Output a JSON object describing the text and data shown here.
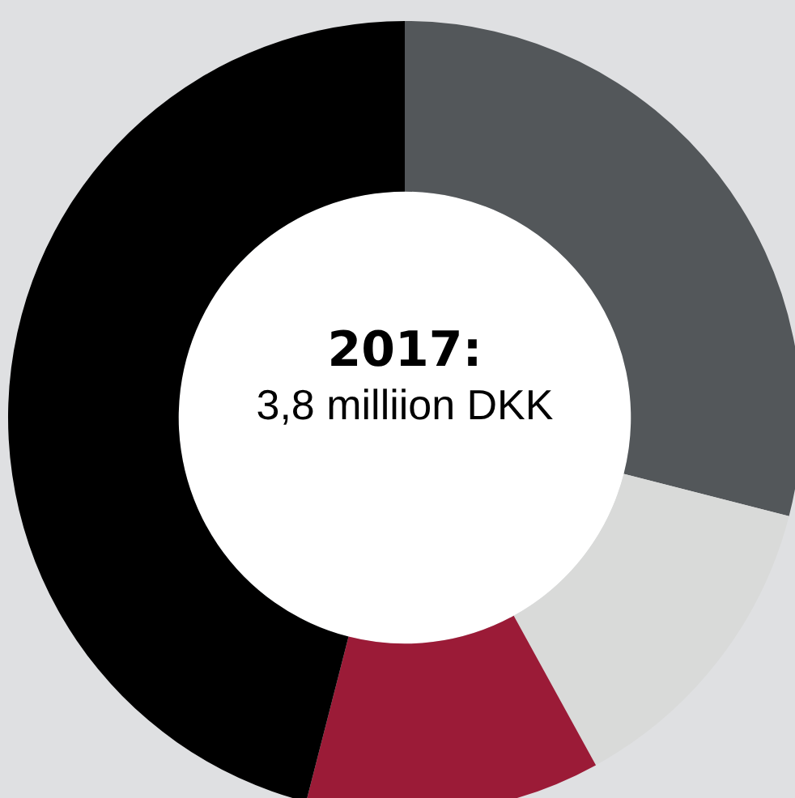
{
  "chart_data": {
    "type": "donut",
    "title": "2017:",
    "subtitle": "3,8 milliion DKK",
    "categories": [
      null,
      null,
      null,
      null
    ],
    "values": [
      29,
      13,
      12,
      46
    ],
    "colors": [
      "#53575a",
      "#d9dad9",
      "#9b1b37",
      "#000000"
    ],
    "legend": false
  }
}
